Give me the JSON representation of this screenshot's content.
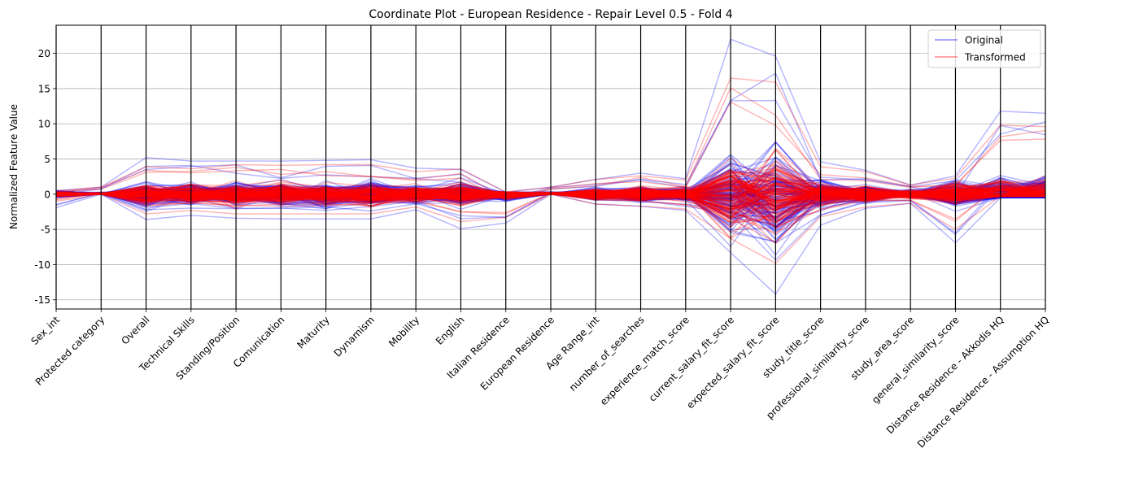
{
  "chart_data": {
    "type": "parallel_coordinates",
    "title": "Coordinate Plot - European Residence - Repair Level 0.5 - Fold 4",
    "xlabel": "",
    "ylabel": "Normalized Feature Value",
    "ylim": [
      -16.3,
      24
    ],
    "yticks": [
      -15,
      -10,
      -5,
      0,
      5,
      10,
      15,
      20
    ],
    "grid": "horizontal",
    "legend_position": "top-right",
    "categories": [
      "Sex_int",
      "Protected category",
      "Overall",
      "Technical Skills",
      "Standing/Position",
      "Comunication",
      "Maturity",
      "Dynamism",
      "Mobility",
      "English",
      "Italian Residence",
      "European Residence",
      "Age Range_int",
      "number_of_searches",
      "experience_match_score",
      "current_salary_fit_score",
      "expected_salary_fit_score",
      "study_title_score",
      "professional_similarity_score",
      "study_area_score",
      "general_similarity_score",
      "Distance Residence - Akkodis HQ",
      "Distance Residence - Assumption HQ"
    ],
    "series": [
      {
        "name": "Original",
        "color": "#0000ff",
        "alpha": 0.3,
        "typical_range": {
          "min": [
            -1.9,
            0,
            -3.6,
            -3.0,
            -3.4,
            -3.5,
            -3.5,
            -3.5,
            -2.2,
            -4.9,
            -4.1,
            0,
            -1.4,
            -1.7,
            -2.3,
            -8.3,
            -14.2,
            -4.4,
            -2.0,
            -1.3,
            -6.9,
            -0.5,
            -0.5
          ],
          "max": [
            0.5,
            1.0,
            5.2,
            4.7,
            4.7,
            4.7,
            4.8,
            4.9,
            3.7,
            3.5,
            0.3,
            1.0,
            2.1,
            3.0,
            2.2,
            22.0,
            19.6,
            4.6,
            3.4,
            1.3,
            2.6,
            11.8,
            11.5
          ]
        }
      },
      {
        "name": "Transformed",
        "color": "#ff0000",
        "alpha": 0.3,
        "typical_range": {
          "min": [
            -1.0,
            0,
            -2.8,
            -2.3,
            -2.8,
            -2.8,
            -2.8,
            -2.8,
            -1.8,
            -3.9,
            -3.3,
            0,
            -1.4,
            -1.7,
            -2.1,
            -6.3,
            -9.8,
            -3.2,
            -1.8,
            -1.3,
            -5.0,
            -0.3,
            -0.3
          ],
          "max": [
            0.5,
            1.0,
            3.9,
            3.6,
            4.2,
            4.1,
            4.2,
            4.2,
            3.2,
            3.6,
            0.3,
            1.0,
            2.1,
            2.6,
            2.0,
            16.5,
            15.9,
            3.9,
            3.2,
            1.3,
            2.3,
            9.8,
            9.6
          ]
        }
      }
    ]
  }
}
